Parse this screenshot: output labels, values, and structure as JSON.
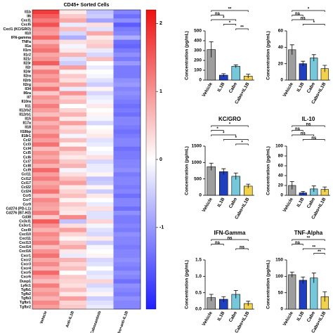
{
  "chart_data": [
    {
      "type": "heatmap",
      "title": "CD45+ Sorted Cells",
      "columns": [
        "Vehicle",
        "Anti-IL1B",
        "Cabozantinib",
        "Cabo+anti-IL1B"
      ],
      "rows": [
        "Il1b",
        "Il6",
        "Cxcl1",
        "Cxcl5",
        "Cxcl1 (KC/GRO)",
        "Il10",
        "IFN-gamma",
        "TNFa",
        "Il1a",
        "Il1rn",
        "Il1r2",
        "Il21r",
        "Il23r",
        "Il2r",
        "Il24r",
        "Il2ra",
        "Il2rb",
        "Il2rg",
        "Il34",
        "Il6ra",
        "Il7",
        "Il10ra",
        "Il11",
        "Il12rb2",
        "Il12rb1",
        "Il15",
        "Il17a",
        "Il18",
        "Il18bp",
        "Il18r1",
        "Ccl2",
        "Ccl3",
        "Ccl4",
        "Ccl5",
        "Ccl6",
        "Ccl7",
        "Ccl8",
        "Ccl9",
        "Ccl11",
        "Ccl12",
        "Ccl17",
        "Ccl22",
        "Ccl24",
        "Ccr5",
        "Ccr7",
        "Ccr9",
        "Cd274 (PD-L1)",
        "Cd276 (B7-H3)",
        "Cd38",
        "Cx3cl1",
        "Cx3cr1",
        "Cxcl9",
        "Cxcl10",
        "Cxcl11",
        "Cxcl13",
        "Cxcl14",
        "Cxcl16",
        "Cxcr1",
        "Cxcr2",
        "Cxcr3",
        "Cxcr4",
        "Cxcr5",
        "Cxcr6",
        "Dusp1",
        "Ly6c1",
        "Tgfb1",
        "Tgfb2",
        "Tgfb3",
        "Tgfbr1",
        "Tgfbr2"
      ],
      "z": [
        [
          1.8,
          0.2,
          -0.6,
          -1.2
        ],
        [
          1.5,
          0.5,
          -0.5,
          -1.4
        ],
        [
          1.2,
          0.8,
          -0.9,
          -1.1
        ],
        [
          1.6,
          -0.2,
          0.3,
          -1.6
        ],
        [
          1.0,
          0.6,
          -0.3,
          -1.3
        ],
        [
          0.9,
          -0.4,
          0.8,
          -1.2
        ],
        [
          1.4,
          -0.8,
          0.2,
          -0.8
        ],
        [
          0.7,
          0.3,
          0.4,
          -1.4
        ],
        [
          1.1,
          -0.1,
          0.5,
          -1.5
        ],
        [
          1.3,
          0.2,
          -0.2,
          -1.3
        ],
        [
          0.8,
          0.7,
          -0.4,
          -1.1
        ],
        [
          1.0,
          -0.3,
          0.6,
          -1.3
        ],
        [
          1.5,
          -0.5,
          0.0,
          -1.0
        ],
        [
          0.6,
          0.9,
          -0.2,
          -1.3
        ],
        [
          1.2,
          0.1,
          0.0,
          -1.3
        ],
        [
          0.9,
          0.5,
          -0.1,
          -1.3
        ],
        [
          1.1,
          0.3,
          -0.3,
          -1.1
        ],
        [
          0.7,
          0.8,
          -0.5,
          -1.0
        ],
        [
          1.3,
          -0.2,
          0.1,
          -1.2
        ],
        [
          0.5,
          1.0,
          -0.4,
          -1.1
        ],
        [
          1.0,
          0.4,
          -0.2,
          -1.2
        ],
        [
          0.8,
          0.6,
          -0.1,
          -1.3
        ],
        [
          1.2,
          0.0,
          0.2,
          -1.4
        ],
        [
          0.9,
          0.4,
          0.0,
          -1.3
        ],
        [
          0.6,
          0.7,
          0.1,
          -1.4
        ],
        [
          1.1,
          0.2,
          -0.1,
          -1.2
        ],
        [
          0.7,
          0.9,
          -0.4,
          -1.2
        ],
        [
          1.0,
          0.3,
          0.0,
          -1.3
        ],
        [
          0.8,
          0.5,
          0.1,
          -1.4
        ],
        [
          1.2,
          -0.1,
          0.2,
          -1.3
        ],
        [
          0.9,
          0.6,
          -0.3,
          -1.2
        ],
        [
          1.3,
          0.1,
          -0.2,
          -1.2
        ],
        [
          0.6,
          0.8,
          0.0,
          -1.4
        ],
        [
          1.0,
          0.4,
          -0.1,
          -1.3
        ],
        [
          0.8,
          0.2,
          0.3,
          -1.3
        ],
        [
          1.1,
          0.5,
          -0.4,
          -1.2
        ],
        [
          0.7,
          0.7,
          -0.2,
          -1.2
        ],
        [
          1.4,
          -0.1,
          -0.2,
          -1.1
        ],
        [
          0.9,
          0.3,
          0.1,
          -1.3
        ],
        [
          1.2,
          0.6,
          -0.6,
          -1.2
        ],
        [
          0.8,
          0.9,
          -0.5,
          -1.2
        ],
        [
          1.0,
          0.2,
          0.1,
          -1.3
        ],
        [
          1.3,
          0.4,
          -0.5,
          -1.2
        ],
        [
          0.6,
          0.6,
          0.2,
          -1.4
        ],
        [
          1.1,
          0.1,
          0.0,
          -1.2
        ],
        [
          0.9,
          0.5,
          -0.2,
          -1.2
        ],
        [
          0.8,
          0.3,
          0.3,
          -1.4
        ],
        [
          1.2,
          0.2,
          -0.3,
          -1.1
        ],
        [
          0.5,
          1.1,
          -0.3,
          -1.3
        ],
        [
          1.5,
          -0.6,
          0.4,
          -1.3
        ],
        [
          1.0,
          0.3,
          -0.1,
          -1.2
        ],
        [
          0.7,
          0.9,
          -0.3,
          -1.3
        ],
        [
          1.1,
          0.4,
          -0.4,
          -1.1
        ],
        [
          0.9,
          0.1,
          0.2,
          -1.2
        ],
        [
          1.2,
          0.5,
          -0.5,
          -1.2
        ],
        [
          0.6,
          0.8,
          -0.1,
          -1.3
        ],
        [
          1.0,
          0.2,
          0.0,
          -1.2
        ],
        [
          1.3,
          -0.2,
          0.1,
          -1.2
        ],
        [
          0.8,
          0.7,
          -0.4,
          -1.1
        ],
        [
          1.1,
          0.4,
          -0.3,
          -1.2
        ],
        [
          0.7,
          0.6,
          0.0,
          -1.3
        ],
        [
          1.4,
          0.0,
          -0.3,
          -1.1
        ],
        [
          0.9,
          0.5,
          -0.2,
          -1.2
        ],
        [
          0.6,
          0.4,
          0.4,
          -1.4
        ],
        [
          1.2,
          0.3,
          -0.4,
          -1.1
        ],
        [
          0.8,
          0.6,
          -0.2,
          -1.2
        ],
        [
          1.0,
          0.2,
          0.1,
          -1.3
        ],
        [
          0.7,
          0.9,
          -0.5,
          -1.1
        ],
        [
          1.1,
          0.4,
          -0.3,
          -1.2
        ],
        [
          0.9,
          0.5,
          -0.2,
          -1.2
        ]
      ],
      "zlim": [
        -2.2,
        2.2
      ],
      "zticks": [
        2,
        1,
        0,
        -1
      ],
      "colors": [
        "#1f1fff",
        "#ffffff",
        "#ee1111"
      ]
    },
    {
      "type": "bar",
      "ylabel": "Concentration (pg/mL)",
      "categories": [
        "Vehicle",
        "IL1B",
        "Cabo",
        "Cabo+IL1B"
      ],
      "values": [
        310,
        50,
        140,
        40
      ],
      "errors": [
        80,
        15,
        15,
        20
      ],
      "colors": [
        "#9e9e9e",
        "#1f3fbf",
        "#76c7d9",
        "#f2d24b"
      ],
      "ylim": [
        0,
        500
      ],
      "yticks": [
        0,
        100,
        200,
        300,
        400,
        500
      ],
      "comparisons": [
        {
          "pair": [
            "Vehicle",
            "Cabo+IL1B"
          ],
          "label": "**"
        },
        {
          "pair": [
            "Vehicle",
            "IL1B"
          ],
          "label": "ns"
        },
        {
          "pair": [
            "Vehicle",
            "Cabo"
          ],
          "label": "*"
        },
        {
          "pair": [
            "IL1B",
            "Cabo"
          ],
          "label": "*"
        },
        {
          "pair": [
            "Cabo",
            "Cabo+IL1B"
          ],
          "label": "**"
        }
      ]
    },
    {
      "type": "bar",
      "ylabel": "Concentration (pg/mL)",
      "categories": [
        "Vehicle",
        "IL1B",
        "Cabo",
        "Cabo+IL1B"
      ],
      "values": [
        37,
        20,
        27,
        14
      ],
      "errors": [
        6,
        3,
        4,
        4
      ],
      "colors": [
        "#9e9e9e",
        "#1f3fbf",
        "#76c7d9",
        "#f2d24b"
      ],
      "ylim": [
        0,
        60
      ],
      "yticks": [
        0,
        20,
        40,
        60
      ],
      "comparisons": [
        {
          "pair": [
            "Vehicle",
            "Cabo+IL1B"
          ],
          "label": "*"
        },
        {
          "pair": [
            "Vehicle",
            "IL1B"
          ],
          "label": "ns"
        },
        {
          "pair": [
            "Vehicle",
            "Cabo"
          ],
          "label": "ns"
        },
        {
          "pair": [
            "IL1B",
            "Cabo+IL1B"
          ],
          "label": "*"
        }
      ]
    },
    {
      "type": "bar",
      "title": "KC/GRO",
      "ylabel": "Concentration (pg/mL)",
      "categories": [
        "Vehicle",
        "IL1B",
        "Cabo",
        "Cabo+IL1B"
      ],
      "values": [
        870,
        720,
        580,
        280
      ],
      "errors": [
        110,
        90,
        100,
        60
      ],
      "colors": [
        "#9e9e9e",
        "#1f3fbf",
        "#76c7d9",
        "#f2d24b"
      ],
      "ylim": [
        0,
        1500
      ],
      "yticks": [
        0,
        500,
        1000,
        1500
      ],
      "comparisons": [
        {
          "pair": [
            "Vehicle",
            "Cabo+IL1B"
          ],
          "label": "*"
        },
        {
          "pair": [
            "Vehicle",
            "IL1B"
          ],
          "label": "*"
        },
        {
          "pair": [
            "Vehicle",
            "Cabo"
          ],
          "label": "*"
        },
        {
          "pair": [
            "IL1B",
            "Cabo+IL1B"
          ],
          "label": "*"
        },
        {
          "pair": [
            "Cabo",
            "Cabo+IL1B"
          ],
          "label": "*"
        }
      ]
    },
    {
      "type": "bar",
      "title": "IL-10",
      "ylabel": "Concentration (pg/mL)",
      "categories": [
        "Vehicle",
        "IL1B",
        "Cabo",
        "Cabo+IL1B"
      ],
      "values": [
        20,
        5,
        13,
        12
      ],
      "errors": [
        8,
        3,
        6,
        5
      ],
      "colors": [
        "#9e9e9e",
        "#1f3fbf",
        "#76c7d9",
        "#f2d24b"
      ],
      "ylim": [
        0,
        100
      ],
      "yticks": [
        0,
        20,
        40,
        60,
        80,
        100
      ],
      "comparisons": [
        {
          "pair": [
            "Vehicle",
            "Cabo+IL1B"
          ],
          "label": "ns"
        },
        {
          "pair": [
            "Vehicle",
            "IL1B"
          ],
          "label": "ns"
        },
        {
          "pair": [
            "Vehicle",
            "Cabo"
          ],
          "label": "ns"
        },
        {
          "pair": [
            "IL1B",
            "Cabo+IL1B"
          ],
          "label": "ns"
        }
      ]
    },
    {
      "type": "bar",
      "title": "IFN-Gamma",
      "ylabel": "Concentration (pg/mL)",
      "categories": [
        "Vehicle",
        "IL1B",
        "Cabo",
        "Cabo+IL1B"
      ],
      "values": [
        0.35,
        0.3,
        0.45,
        0.17
      ],
      "errors": [
        0.1,
        0.08,
        0.12,
        0.07
      ],
      "colors": [
        "#9e9e9e",
        "#1f3fbf",
        "#76c7d9",
        "#f2d24b"
      ],
      "ylim": [
        0,
        1.5
      ],
      "yticks": [
        {
          "value": 0,
          "label": "0.0"
        },
        0.5,
        {
          "value": 1,
          "label": "1.0"
        },
        1.5
      ],
      "comparisons": [
        {
          "pair": [
            "Vehicle",
            "Cabo+IL1B"
          ],
          "label": "ns"
        },
        {
          "pair": [
            "Vehicle",
            "IL1B"
          ],
          "label": "ns"
        },
        {
          "pair": [
            "Cabo",
            "Cabo+IL1B"
          ],
          "label": "ns"
        }
      ]
    },
    {
      "type": "bar",
      "title": "TNF-Alpha",
      "ylabel": "Concentration (pg/mL)",
      "categories": [
        "Vehicle",
        "IL1B",
        "Cabo",
        "Cabo+IL1B"
      ],
      "values": [
        105,
        88,
        95,
        38
      ],
      "errors": [
        8,
        10,
        15,
        15
      ],
      "colors": [
        "#9e9e9e",
        "#1f3fbf",
        "#76c7d9",
        "#f2d24b"
      ],
      "ylim": [
        0,
        150
      ],
      "yticks": [
        0,
        50,
        100,
        150
      ],
      "comparisons": [
        {
          "pair": [
            "Vehicle",
            "Cabo+IL1B"
          ],
          "label": "**"
        },
        {
          "pair": [
            "Vehicle",
            "IL1B"
          ],
          "label": "ns"
        },
        {
          "pair": [
            "IL1B",
            "Cabo+IL1B"
          ],
          "label": "**"
        },
        {
          "pair": [
            "Cabo",
            "Cabo+IL1B"
          ],
          "label": "**"
        }
      ]
    }
  ]
}
